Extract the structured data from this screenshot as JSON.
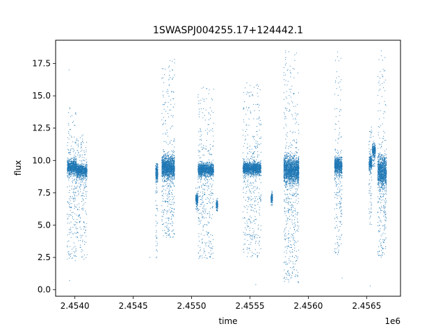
{
  "chart_data": {
    "type": "scatter",
    "title": "1SWASPJ004255.17+124442.1",
    "xlabel": "time",
    "ylabel": "flux",
    "x_offset_label": "1e6",
    "xlim": [
      2453835,
      2456790
    ],
    "ylim": [
      -0.5,
      19.3
    ],
    "x_ticks": [
      2454000,
      2454500,
      2455000,
      2455500,
      2456000,
      2456500
    ],
    "x_tick_labels": [
      "2.4540",
      "2.4545",
      "2.4550",
      "2.4555",
      "2.4560",
      "2.4565"
    ],
    "y_ticks": [
      0,
      2.5,
      5,
      7.5,
      10,
      12.5,
      15,
      17.5
    ],
    "y_tick_labels": [
      "0.0",
      "2.5",
      "5.0",
      "7.5",
      "10.0",
      "12.5",
      "15.0",
      "17.5"
    ],
    "grid": false,
    "legend": "none",
    "point_color": "#1f77b4",
    "segments": [
      {
        "x_start": 2453935,
        "x_end": 2454015,
        "y_center": 9.5,
        "core_spread": 0.7,
        "tail_low": 2.2,
        "tail_high": 14.2
      },
      {
        "x_start": 2454015,
        "x_end": 2454105,
        "y_center": 9.2,
        "core_spread": 0.6,
        "tail_low": 2.3,
        "tail_high": 12.0
      },
      {
        "x_start": 2454692,
        "x_end": 2454712,
        "y_center": 9.0,
        "core_spread": 0.8,
        "tail_low": 2.4,
        "tail_high": 9.8
      },
      {
        "x_start": 2454745,
        "x_end": 2454855,
        "y_center": 9.5,
        "core_spread": 1.0,
        "tail_low": 4.0,
        "tail_high": 18.3
      },
      {
        "x_start": 2455035,
        "x_end": 2455055,
        "y_center": 7.0,
        "core_spread": 0.5,
        "tail_low": 6.0,
        "tail_high": 8.0
      },
      {
        "x_start": 2455055,
        "x_end": 2455190,
        "y_center": 9.3,
        "core_spread": 0.6,
        "tail_low": 2.4,
        "tail_high": 15.7
      },
      {
        "x_start": 2455210,
        "x_end": 2455225,
        "y_center": 6.6,
        "core_spread": 0.4,
        "tail_low": 6.0,
        "tail_high": 7.2
      },
      {
        "x_start": 2455440,
        "x_end": 2455595,
        "y_center": 9.4,
        "core_spread": 0.6,
        "tail_low": 2.5,
        "tail_high": 16.0
      },
      {
        "x_start": 2455680,
        "x_end": 2455695,
        "y_center": 7.1,
        "core_spread": 0.4,
        "tail_low": 6.5,
        "tail_high": 7.8
      },
      {
        "x_start": 2455790,
        "x_end": 2455920,
        "y_center": 9.3,
        "core_spread": 1.2,
        "tail_low": 0.5,
        "tail_high": 18.5
      },
      {
        "x_start": 2456225,
        "x_end": 2456290,
        "y_center": 9.6,
        "core_spread": 0.8,
        "tail_low": 2.6,
        "tail_high": 18.4
      },
      {
        "x_start": 2456520,
        "x_end": 2456545,
        "y_center": 9.8,
        "core_spread": 0.7,
        "tail_low": 5.0,
        "tail_high": 12.8
      },
      {
        "x_start": 2456548,
        "x_end": 2456575,
        "y_center": 10.8,
        "core_spread": 0.5,
        "tail_low": 9.5,
        "tail_high": 12.0
      },
      {
        "x_start": 2456595,
        "x_end": 2456670,
        "y_center": 9.2,
        "core_spread": 1.4,
        "tail_low": 2.4,
        "tail_high": 18.5
      }
    ],
    "outliers": [
      {
        "x": 2453950,
        "y": 17.0
      },
      {
        "x": 2453955,
        "y": 0.7
      },
      {
        "x": 2454642,
        "y": 2.5
      },
      {
        "x": 2455550,
        "y": 0.4
      },
      {
        "x": 2456290,
        "y": 0.9
      },
      {
        "x": 2456530,
        "y": 0.3
      }
    ]
  }
}
